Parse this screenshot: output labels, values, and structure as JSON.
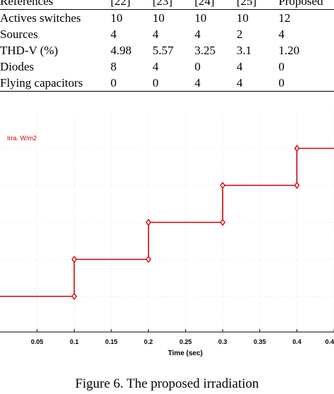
{
  "table": {
    "header": [
      "References",
      "[22]",
      "[23]",
      "[24]",
      "[25]",
      "Proposed"
    ],
    "rows": [
      [
        "Actives switches",
        "10",
        "10",
        "10",
        "10",
        "12"
      ],
      [
        "Sources",
        "4",
        "4",
        "4",
        "2",
        "4"
      ],
      [
        "THD-V (%)",
        "4.98",
        "5.57",
        "3.25",
        "3.1",
        "1.20"
      ],
      [
        "Diodes",
        "8",
        "4",
        "0",
        "4",
        "0"
      ],
      [
        "Flying capacitors",
        "0",
        "0",
        "4",
        "4",
        "0"
      ]
    ]
  },
  "chart_data": {
    "type": "line",
    "series": [
      {
        "name": "Irra. W/m2",
        "color": "#d40000",
        "step_times": [
          0,
          0.1,
          0.1,
          0.2,
          0.2,
          0.3,
          0.3,
          0.4,
          0.4,
          0.45
        ],
        "step_values": [
          1,
          1,
          2,
          2,
          3,
          3,
          4,
          4,
          5,
          5
        ],
        "marker_times": [
          0.1,
          0.1,
          0.2,
          0.2,
          0.3,
          0.3,
          0.4,
          0.4
        ],
        "marker_values": [
          1,
          2,
          2,
          3,
          3,
          4,
          4,
          5
        ]
      }
    ],
    "xlabel": "Time (sec)",
    "xticks": [
      "0.05",
      "0.1",
      "0.15",
      "0.2",
      "0.25",
      "0.3",
      "0.35",
      "0.4",
      "0.4"
    ],
    "xlim": [
      0,
      0.45
    ],
    "ylim": [
      0,
      6
    ],
    "grid": true
  },
  "caption": "Figure 6. The proposed irradiation"
}
